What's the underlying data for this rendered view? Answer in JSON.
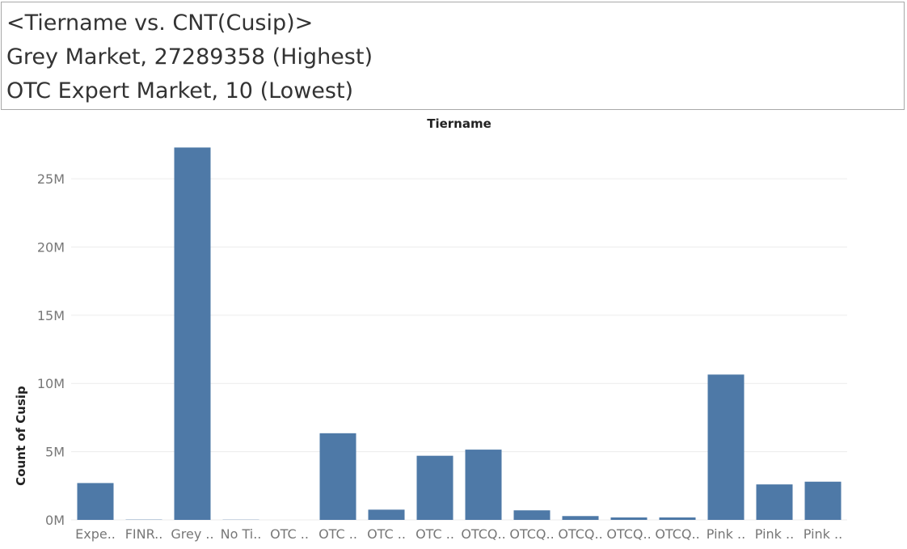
{
  "caption": {
    "line1": "<Tiername vs. CNT(Cusip)>",
    "line2": "Grey Market, 27289358 (Highest)",
    "line3": "OTC Expert Market, 10 (Lowest)"
  },
  "colors": {
    "bar": "#4e79a7",
    "gridline": "#ececec",
    "caption_border": "#a8a8a8"
  },
  "chart_data": {
    "type": "bar",
    "title": "Tiername",
    "xlabel": "",
    "ylabel": "Count of Cusip",
    "ylim": [
      0,
      28500000
    ],
    "yticks": [
      0,
      5000000,
      10000000,
      15000000,
      20000000,
      25000000
    ],
    "ytick_labels": [
      "0M",
      "5M",
      "10M",
      "15M",
      "20M",
      "25M"
    ],
    "grid": true,
    "categories": [
      "Expe..",
      "FINR..",
      "Grey ..",
      "No Ti..",
      "OTC ..",
      "OTC ..",
      "OTC ..",
      "OTC ..",
      "OTCQ..",
      "OTCQ..",
      "OTCQ..",
      "OTCQ..",
      "OTCQ..",
      "Pink ..",
      "Pink ..",
      "Pink .."
    ],
    "values": [
      2700000,
      20000,
      27289358,
      15000,
      10,
      6350000,
      750000,
      4700000,
      5150000,
      700000,
      280000,
      180000,
      180000,
      10650000,
      2600000,
      2800000
    ]
  }
}
